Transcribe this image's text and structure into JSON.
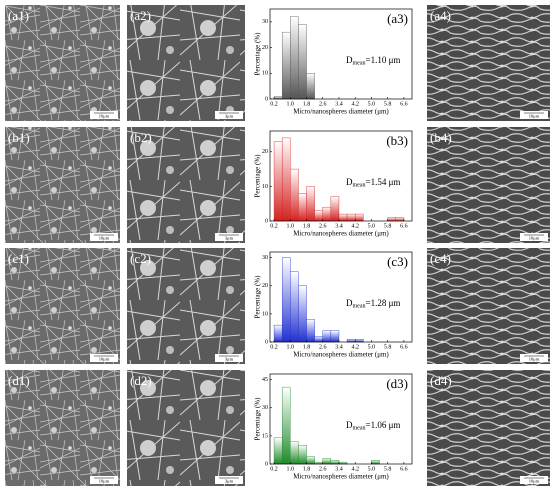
{
  "panels": [
    {
      "labels": [
        "(a1)",
        "(a2)",
        "(a4)"
      ],
      "scales": [
        "10μm",
        "3μm",
        "10μm"
      ]
    },
    {
      "labels": [
        "(b1)",
        "(b2)",
        "(b4)"
      ],
      "scales": [
        "10μm",
        "3μm",
        "10μm"
      ]
    },
    {
      "labels": [
        "(c1)",
        "(c2)",
        "(c4)"
      ],
      "scales": [
        "10μm",
        "3μm",
        "10μm"
      ]
    },
    {
      "labels": [
        "(d1)",
        "(d2)",
        "(d4)"
      ],
      "scales": [
        "10μm",
        "3μm",
        "10μm"
      ]
    }
  ],
  "chart_data": [
    {
      "type": "histogram",
      "panel_label": "(a3)",
      "x_label": "Micro/nanospheres diameter (μm)",
      "y_label": "Percentage (%)",
      "annotation": "D",
      "annotation_sub": "mean",
      "annotation_value": "=1.10 μm",
      "color": "#555555",
      "bins": [
        0.2,
        0.6,
        1.0,
        1.4,
        1.8,
        2.2,
        2.6,
        3.0,
        3.4,
        3.8,
        4.2,
        4.6,
        5.0,
        5.4,
        5.8,
        6.2,
        6.6
      ],
      "values": [
        1,
        26,
        32,
        29,
        10,
        0,
        0,
        0,
        0,
        0,
        0,
        0,
        0,
        0,
        0,
        0
      ],
      "xlim": [
        0,
        7
      ],
      "ylim": [
        0,
        35
      ],
      "xticks": [
        0.2,
        {
          "value": 1,
          "label": "1.0"
        },
        1.8,
        2.6,
        3.4,
        4.2,
        {
          "value": 5,
          "label": "5.0"
        },
        5.8,
        6.6
      ],
      "yticks": [
        0,
        10,
        20,
        30
      ]
    },
    {
      "type": "histogram",
      "panel_label": "(b3)",
      "x_label": "Micro/nanospheres diameter (μm)",
      "y_label": "Percentage (%)",
      "annotation": "D",
      "annotation_sub": "mean",
      "annotation_value": "=1.54 μm",
      "color": "#d42020",
      "bins": [
        0.2,
        0.6,
        1.0,
        1.4,
        1.8,
        2.2,
        2.6,
        3.0,
        3.4,
        3.8,
        4.2,
        4.6,
        5.0,
        5.4,
        5.8,
        6.2,
        6.6
      ],
      "values": [
        23,
        24,
        15,
        8,
        10,
        3,
        4,
        7,
        2,
        2,
        2,
        0,
        0,
        0,
        1,
        1
      ],
      "xlim": [
        0,
        7
      ],
      "ylim": [
        0,
        26
      ],
      "xticks": [
        0.2,
        {
          "value": 1,
          "label": "1.0"
        },
        1.8,
        2.6,
        3.4,
        4.2,
        {
          "value": 5,
          "label": "5.0"
        },
        5.8,
        6.6
      ],
      "yticks": [
        0,
        10,
        20
      ]
    },
    {
      "type": "histogram",
      "panel_label": "(c3)",
      "x_label": "Micro/nanospheres diameter (μm)",
      "y_label": "Percentage (%)",
      "annotation": "D",
      "annotation_sub": "mean",
      "annotation_value": "=1.28 μm",
      "color": "#2030d0",
      "bins": [
        0.2,
        0.6,
        1.0,
        1.4,
        1.8,
        2.2,
        2.6,
        3.0,
        3.4,
        3.8,
        4.2,
        4.6,
        5.0,
        5.4,
        5.8,
        6.2,
        6.6
      ],
      "values": [
        6,
        30,
        25,
        20,
        8,
        2,
        4,
        4,
        0,
        1,
        1,
        0,
        0,
        0,
        0,
        0
      ],
      "xlim": [
        0,
        7
      ],
      "ylim": [
        0,
        32
      ],
      "xticks": [
        0.2,
        {
          "value": 1,
          "label": "1.0"
        },
        1.8,
        2.6,
        3.4,
        4.2,
        {
          "value": 5,
          "label": "5.0"
        },
        5.8,
        6.6
      ],
      "yticks": [
        0,
        10,
        20,
        30
      ]
    },
    {
      "type": "histogram",
      "panel_label": "(d3)",
      "x_label": "Micro/nanospheres diameter (μm)",
      "y_label": "Percentage (%)",
      "annotation": "D",
      "annotation_sub": "mean",
      "annotation_value": "=1.06 μm",
      "color": "#1f8a2a",
      "bins": [
        0.2,
        0.6,
        1.0,
        1.4,
        1.8,
        2.2,
        2.6,
        3.0,
        3.4,
        3.8,
        4.2,
        4.6,
        5.0,
        5.4,
        5.8,
        6.2,
        6.6
      ],
      "values": [
        14,
        41,
        12,
        10,
        4,
        1,
        3,
        2,
        1,
        0,
        0,
        0,
        2,
        0,
        0,
        0
      ],
      "xlim": [
        0,
        7
      ],
      "ylim": [
        0,
        48
      ],
      "xticks": [
        0.2,
        {
          "value": 1,
          "label": "1.0"
        },
        1.8,
        2.6,
        3.4,
        4.2,
        {
          "value": 5,
          "label": "5.0"
        },
        5.8,
        6.6
      ],
      "yticks": [
        0,
        15,
        30,
        45
      ]
    }
  ]
}
